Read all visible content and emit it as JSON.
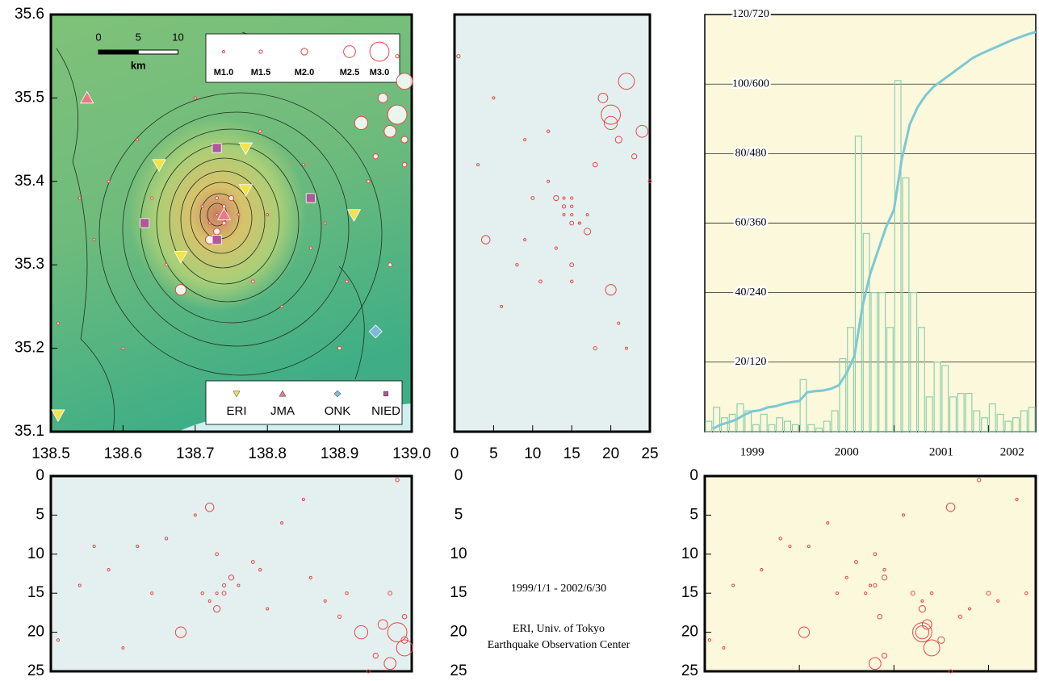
{
  "chart_data": [
    {
      "type": "scatter",
      "xlim": [
        138.5,
        139.0
      ],
      "xticks": [
        138.5,
        138.6,
        138.7,
        138.8,
        138.9,
        {
          "value": 139.0,
          "label": "139.0"
        }
      ],
      "ylim": [
        35.1,
        35.6
      ],
      "yticks": [
        35.1,
        35.2,
        35.3,
        35.4,
        35.5,
        35.6
      ],
      "series": [
        {
          "color": "#e8474a",
          "x": [
            138.73,
            138.74,
            138.72,
            138.75,
            138.73,
            138.71,
            138.76,
            138.74,
            138.72,
            138.73,
            138.98,
            138.99,
            138.97,
            138.96,
            138.99,
            138.95,
            138.93,
            138.98,
            138.99,
            138.94,
            138.54,
            138.58,
            138.62,
            138.66,
            138.82,
            138.86,
            138.9,
            138.6,
            138.85,
            138.78,
            138.68,
            138.79,
            138.7,
            138.51,
            138.88,
            138.91,
            138.56,
            138.64,
            138.8,
            138.97
          ],
          "y": [
            35.36,
            35.37,
            35.35,
            35.38,
            35.34,
            35.37,
            35.36,
            35.35,
            35.33,
            35.38,
            35.48,
            35.52,
            35.46,
            35.5,
            35.45,
            35.43,
            35.47,
            35.55,
            35.42,
            35.4,
            35.38,
            35.4,
            35.45,
            35.3,
            35.25,
            35.32,
            35.2,
            35.2,
            35.42,
            35.28,
            35.27,
            35.46,
            35.5,
            35.23,
            35.35,
            35.28,
            35.33,
            35.38,
            35.36,
            35.3
          ],
          "size": [
            1.2,
            1.5,
            1.0,
            1.8,
            2.0,
            1.3,
            1.1,
            1.6,
            2.2,
            1.4,
            3.0,
            2.8,
            2.5,
            2.3,
            2.0,
            1.8,
            2.6,
            1.5,
            1.7,
            1.4,
            1.0,
            1.2,
            1.1,
            1.3,
            1.0,
            1.2,
            1.5,
            1.0,
            1.1,
            1.4,
            2.4,
            1.3,
            1.0,
            1.2,
            1.0,
            1.3,
            1.1,
            1.2,
            1.0,
            1.6
          ],
          "depth": [
            15,
            14,
            16,
            13,
            17,
            15,
            14,
            15,
            4,
            10,
            20,
            22,
            24,
            19,
            21,
            23,
            20,
            0.5,
            18,
            25,
            14,
            12,
            9,
            8,
            6,
            13,
            18,
            22,
            3,
            11,
            20,
            12,
            5,
            21,
            16,
            15,
            9,
            15,
            17,
            15
          ],
          "time": [
            2000.7,
            2000.8,
            2001.3,
            2000.9,
            2001.3,
            2001.4,
            2000.75,
            2001.2,
            2001.6,
            2000.8,
            2001.3,
            2001.4,
            2000.8,
            2001.35,
            2001.5,
            2000.9,
            2001.3,
            2001.9,
            2000.85,
            2001.6,
            1999.3,
            1999.6,
            2000.1,
            1999.8,
            2000.3,
            2000.5,
            2001.7,
            1999.2,
            2002.3,
            2000.6,
            2000.05,
            2000.9,
            2001.1,
            1999.05,
            2002.1,
            2002.4,
            1999.9,
            2000.4,
            2001.8,
            2002.0
          ]
        }
      ],
      "size_legend": [
        {
          "value": 1.0,
          "label": "M1.0"
        },
        {
          "value": 1.5,
          "label": "M1.5"
        },
        {
          "value": 2.0,
          "label": "M2.0"
        },
        {
          "value": 2.5,
          "label": "M2.5"
        },
        {
          "value": 3.0,
          "label": "M3.0"
        }
      ],
      "stations": [
        {
          "name": "ERI",
          "color": "#f2e34a",
          "marker": "triangle-down",
          "x": [
            138.65,
            138.77,
            138.77,
            138.68,
            138.92,
            138.51
          ],
          "y": [
            35.42,
            35.44,
            35.39,
            35.31,
            35.36,
            35.12
          ]
        },
        {
          "name": "JMA",
          "color": "#e87a85",
          "marker": "triangle-up",
          "x": [
            138.55,
            138.74
          ],
          "y": [
            35.5,
            35.36
          ]
        },
        {
          "name": "ONK",
          "color": "#7fb8d8",
          "marker": "diamond",
          "x": [
            138.95
          ],
          "y": [
            35.22
          ]
        },
        {
          "name": "NIED",
          "color": "#b0589a",
          "marker": "square",
          "x": [
            138.73,
            138.63,
            138.73,
            138.86
          ],
          "y": [
            35.44,
            35.35,
            35.33,
            35.38
          ]
        }
      ],
      "scale_bar": {
        "ticks": [
          0,
          5,
          10
        ],
        "unit": "km"
      }
    },
    {
      "type": "scatter",
      "xlim": [
        0,
        25
      ],
      "xticks": [
        0,
        5,
        10,
        15,
        20,
        25
      ],
      "ylim": [
        35.1,
        35.6
      ]
    },
    {
      "type": "histogram",
      "xlim": [
        1999,
        2002.5
      ],
      "xticks": [
        1999,
        2000,
        2001,
        2002
      ],
      "ylim": [
        0,
        120
      ],
      "y2lim": [
        0,
        720
      ],
      "grid": true,
      "yticks": [
        {
          "value": 20,
          "label": "20/120"
        },
        {
          "value": 40,
          "label": "40/240"
        },
        {
          "value": 60,
          "label": "60/360"
        },
        {
          "value": 80,
          "label": "80/480"
        },
        {
          "value": 100,
          "label": "100/600"
        },
        {
          "value": 120,
          "label": "120/720"
        }
      ],
      "bins": [
        1999,
        1999.083,
        1999.167,
        1999.25,
        1999.333,
        1999.417,
        1999.5,
        1999.583,
        1999.667,
        1999.75,
        1999.833,
        1999.917,
        2000,
        2000.083,
        2000.167,
        2000.25,
        2000.333,
        2000.417,
        2000.5,
        2000.583,
        2000.667,
        2000.75,
        2000.833,
        2000.917,
        2001,
        2001.083,
        2001.167,
        2001.25,
        2001.333,
        2001.417,
        2001.5,
        2001.583,
        2001.667,
        2001.75,
        2001.833,
        2001.917,
        2002,
        2002.083,
        2002.167,
        2002.25,
        2002.333,
        2002.417,
        2002.5
      ],
      "series": [
        {
          "color": "#8fcfae",
          "values": [
            3,
            7,
            4,
            5,
            8,
            6,
            2,
            5,
            2,
            4,
            3,
            2,
            15,
            2,
            1,
            3,
            6,
            21,
            30,
            85,
            57,
            40,
            40,
            30,
            101,
            73,
            40,
            30,
            10,
            20,
            19,
            10,
            11,
            11,
            6,
            4,
            8,
            5,
            3,
            4,
            6,
            7
          ]
        },
        {
          "color": "#7cc8d4",
          "axis": "y2",
          "values": [
            5,
            12,
            16,
            21,
            29,
            35,
            37,
            42,
            44,
            48,
            51,
            53,
            68,
            70,
            71,
            74,
            80,
            101,
            131,
            216,
            273,
            313,
            353,
            383,
            470,
            530,
            560,
            580,
            595,
            605,
            615,
            625,
            635,
            645,
            652,
            658,
            664,
            670,
            676,
            681,
            686,
            690
          ]
        }
      ]
    },
    {
      "type": "scatter",
      "xlim": [
        138.5,
        139.0
      ],
      "ylim": [
        25,
        0
      ],
      "yticks": [
        0,
        5,
        10,
        15,
        20,
        25
      ]
    },
    {
      "type": "scatter",
      "xlim": [
        1999,
        2002.5
      ],
      "ylim": [
        25,
        0
      ],
      "yticks": [
        0,
        5,
        10,
        15,
        20,
        25
      ]
    }
  ],
  "caption": {
    "period": "1999/1/1 - 2002/6/30",
    "institution": "ERI, Univ. of Tokyo",
    "center": "Earthquake Observation Center"
  }
}
